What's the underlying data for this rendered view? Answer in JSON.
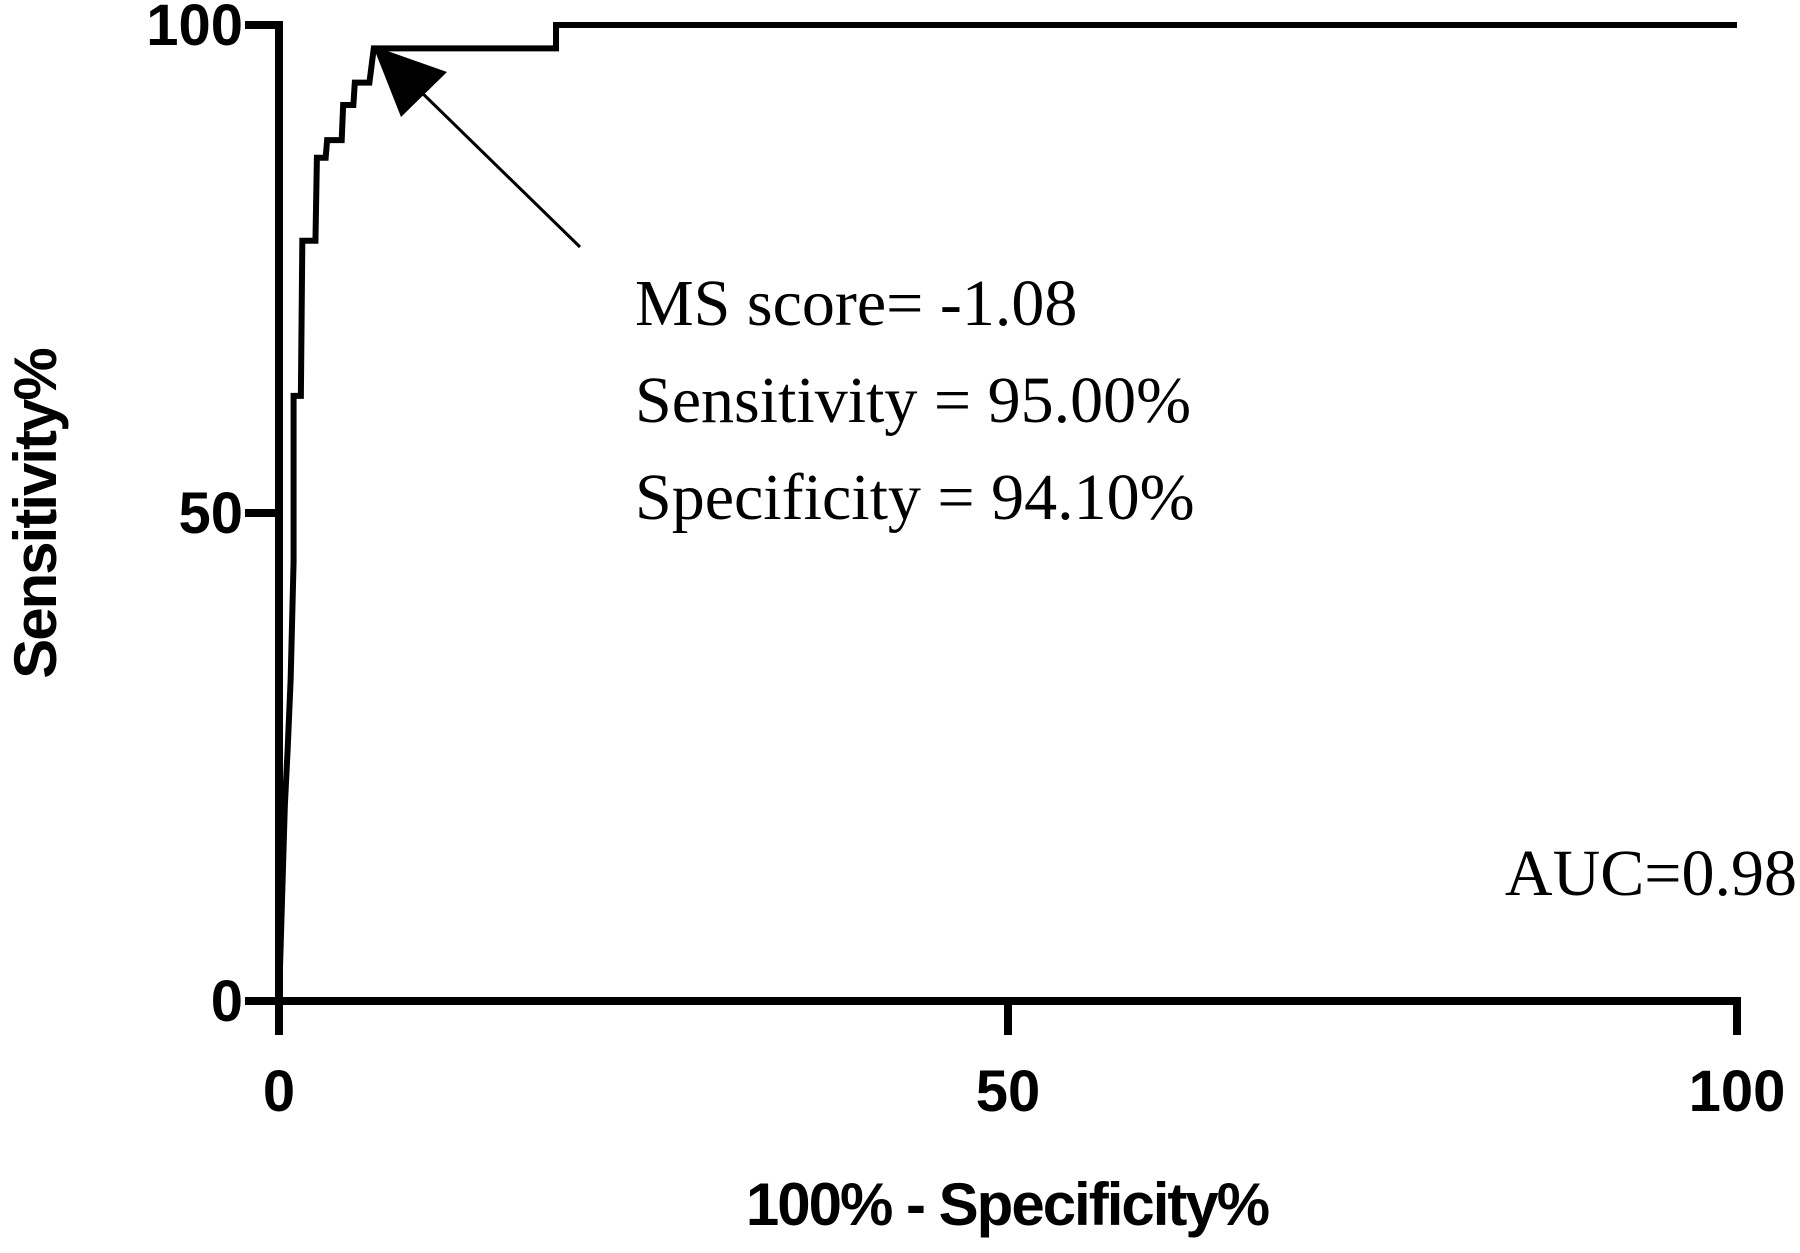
{
  "chart_data": {
    "type": "line",
    "x_label": "100% - Specificity%",
    "y_label": "Sensitivity%",
    "annotations": [
      "MS score= -1.08",
      "Sensitivity = 95.00%",
      "Specificity = 94.10%",
      "AUC=0.98"
    ],
    "x": [
      0,
      0.2,
      0.4,
      0.6,
      0.8,
      1,
      1,
      1.5,
      1.6,
      2.5,
      2.6,
      3.2,
      3.3,
      4.3,
      4.4,
      5.1,
      5.2,
      6.2,
      6.5,
      19,
      19,
      100
    ],
    "series": [
      {
        "color": "#000000",
        "values": [
          0,
          10,
          20,
          26,
          33,
          45,
          62,
          62,
          77.9,
          77.9,
          86.4,
          86.4,
          88.2,
          88.2,
          91.8,
          91.8,
          94.1,
          94.1,
          97.6,
          97.6,
          100,
          100
        ]
      }
    ],
    "xlim": [
      0,
      100
    ],
    "xticks": [
      0,
      50,
      100
    ],
    "ylim": [
      0,
      100
    ],
    "yticks": [
      0,
      50,
      100
    ]
  }
}
